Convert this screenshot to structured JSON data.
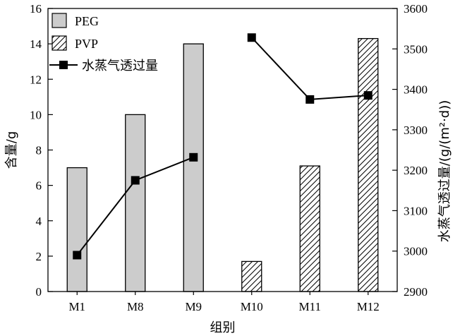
{
  "chart_data": {
    "type": "bar",
    "categories": [
      "M1",
      "M8",
      "M9",
      "M10",
      "M11",
      "M12"
    ],
    "xlabel": "组别",
    "ylabel": "含量/g",
    "y2label": "水蒸气透过量/(g/(m²·d))",
    "ylim": [
      0,
      16
    ],
    "y_ticks": [
      "0",
      "2",
      "4",
      "6",
      "8",
      "10",
      "12",
      "14",
      "16"
    ],
    "y2lim": [
      2900,
      3600
    ],
    "y2_ticks": [
      "2900",
      "3000",
      "3100",
      "3200",
      "3300",
      "3400",
      "3500",
      "3600"
    ],
    "grid": false,
    "legend_position": "top-left",
    "series": [
      {
        "name": "PEG",
        "kind": "bar",
        "axis": "left",
        "fill": "#cccccc",
        "pattern": "solid",
        "values": [
          7.0,
          10.0,
          14.0,
          null,
          null,
          null
        ]
      },
      {
        "name": "PVP",
        "kind": "bar",
        "axis": "left",
        "fill": "#ffffff",
        "pattern": "hatch",
        "values": [
          null,
          null,
          null,
          1.7,
          7.1,
          14.3
        ]
      },
      {
        "name": "水蒸气透过量",
        "kind": "line",
        "axis": "right",
        "color": "#000000",
        "marker": "square",
        "segments": [
          {
            "x": [
              "M1",
              "M8",
              "M9"
            ],
            "values": [
              2990,
              3175,
              3232
            ]
          },
          {
            "x": [
              "M10",
              "M11",
              "M12"
            ],
            "values": [
              3528,
              3375,
              3385
            ]
          }
        ]
      }
    ]
  }
}
